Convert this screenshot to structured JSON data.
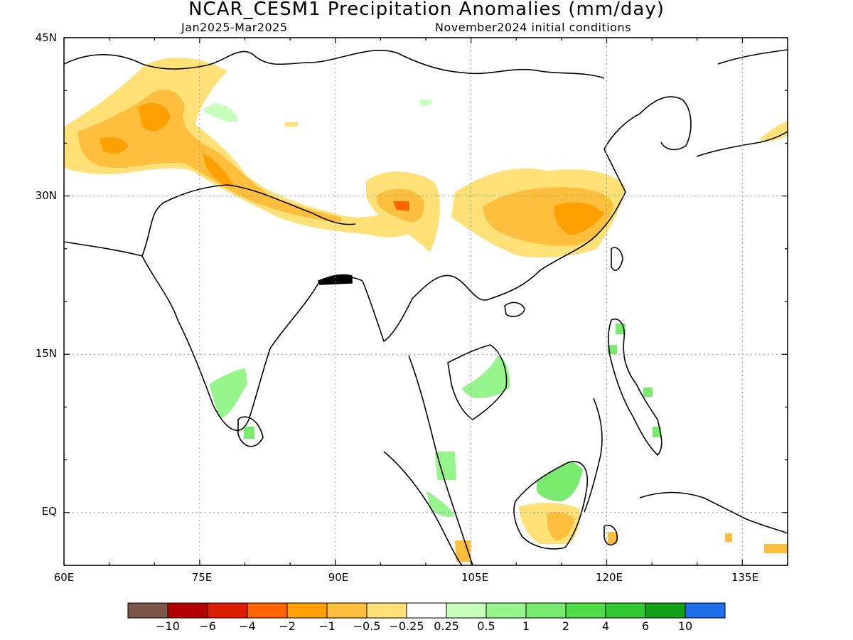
{
  "title": "NCAR_CESM1 Precipitation Anomalies (mm/day)",
  "subtitle_left": "Jan2025-Mar2025",
  "subtitle_right": "November2024 initial conditions",
  "map": {
    "lon_range": [
      60,
      140
    ],
    "lat_range": [
      -5,
      45
    ],
    "y_ticks": [
      "45N",
      "30N",
      "15N",
      "EQ"
    ],
    "x_ticks": [
      "60E",
      "75E",
      "90E",
      "105E",
      "120E",
      "135E"
    ],
    "gridlines": "dotted"
  },
  "colorbar": {
    "colors": [
      "#7a5548",
      "#b40000",
      "#dc1e00",
      "#ff6400",
      "#ff9f00",
      "#ffbe3c",
      "#ffe178",
      "#ffffff",
      "#c8ffbe",
      "#96f58c",
      "#78eb6e",
      "#50dc46",
      "#32c832",
      "#14a014",
      "#1e6eeb"
    ],
    "labels": [
      "−10",
      "−6",
      "−4",
      "−2",
      "−1",
      "−0.5",
      "−0.25",
      "0.25",
      "0.5",
      "1",
      "2",
      "4",
      "6",
      "10"
    ]
  }
}
